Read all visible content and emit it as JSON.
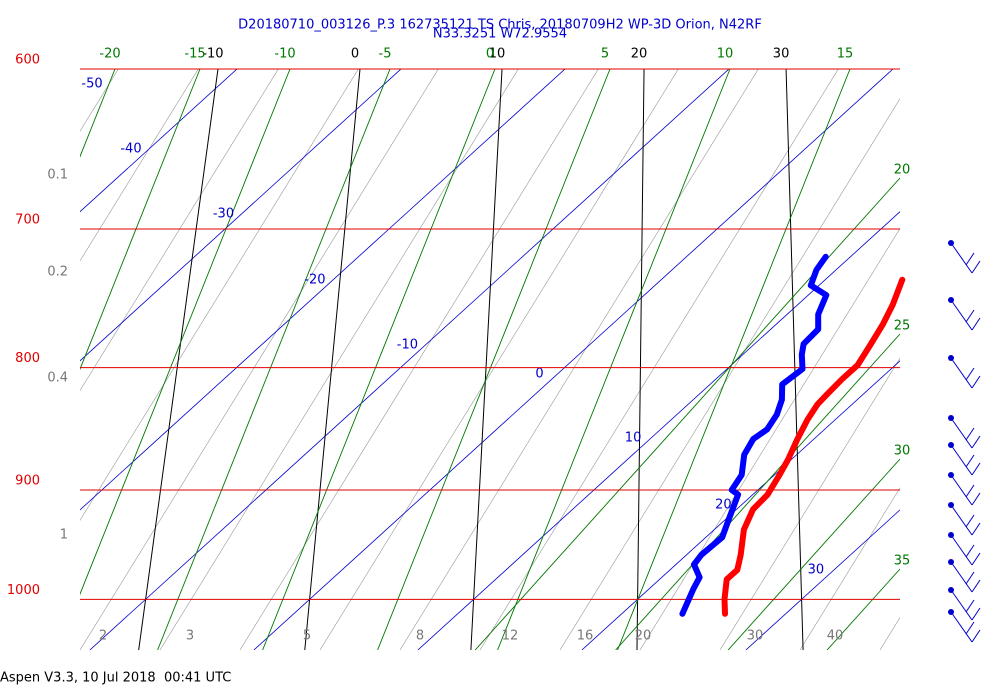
{
  "header": {
    "line1": "D20180710_003126_P.3 162735121 TS Chris, 20180709H2 WP-3D Orion, N42RF",
    "line2": "N33.3251 W72.9554"
  },
  "footer": "Aspen V3.3, 10 Jul 2018  00:41 UTC",
  "chart_data": {
    "type": "skew-t",
    "log_y": true,
    "ylim": [
      1050,
      600
    ],
    "yticks": [
      600,
      700,
      800,
      900,
      1000
    ],
    "xlim": [
      -14,
      36
    ],
    "isotherms": [
      -50,
      -40,
      -30,
      -20,
      -10,
      0,
      10,
      20,
      30
    ],
    "black_lines": [
      -10,
      0,
      10,
      20,
      30
    ],
    "green_top": [
      -20,
      -15,
      -10,
      -5,
      0,
      5,
      10,
      15
    ],
    "green_right": [
      20,
      25,
      30,
      35
    ],
    "mixing_left": [
      0.1,
      0.2,
      0.4,
      1
    ],
    "mixing_bottom": [
      2,
      3,
      5,
      8,
      12,
      16,
      20,
      30,
      40
    ],
    "series": [
      {
        "color": "#ff0000",
        "pressure": [
          1014,
          1000,
          981,
          972,
          958,
          935,
          917,
          904,
          887,
          874,
          857,
          841,
          829,
          821,
          809,
          798,
          782,
          767,
          753,
          735
        ],
        "values": [
          26.3,
          25.3,
          24.1,
          24.1,
          23.3,
          21.8,
          21.0,
          20.9,
          20.3,
          19.8,
          19.0,
          18.3,
          17.9,
          17.8,
          17.7,
          17.7,
          17.1,
          16.5,
          15.8,
          14.7
        ]
      },
      {
        "color": "#0000ff",
        "pressure": [
          1014,
          990,
          979,
          967,
          958,
          942,
          926,
          904,
          900,
          887,
          870,
          857,
          849,
          837,
          825,
          813,
          801,
          790,
          782,
          771,
          760,
          746,
          739,
          728,
          719
        ],
        "values": [
          23.7,
          22.7,
          22.3,
          21.1,
          20.9,
          21.0,
          20.2,
          19.1,
          18.4,
          18.0,
          16.8,
          16.3,
          16.5,
          16.1,
          15.4,
          14.4,
          14.6,
          13.6,
          13.0,
          12.9,
          11.9,
          11.1,
          9.5,
          8.8,
          8.5
        ]
      }
    ]
  }
}
